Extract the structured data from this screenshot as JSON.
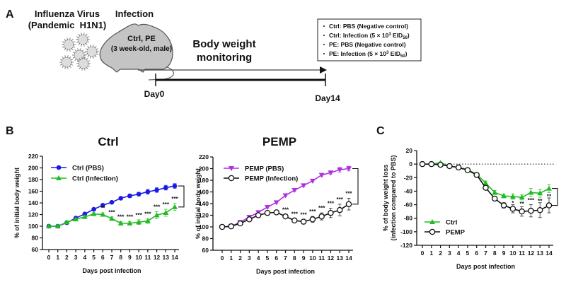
{
  "panel_a": {
    "label": "A",
    "virus_title_1": "Influenza Virus",
    "virus_title_2": "(Pandemic  H1N1)",
    "infection_label": "Infection",
    "mouse_line_1": "Ctrl, PE",
    "mouse_line_2": "(3 week-old, male)",
    "monitor_line_1": "Body weight",
    "monitor_line_2": "monitoring",
    "day_start": "Day0",
    "day_end": "Day14",
    "groups": [
      {
        "text": "Ctrl: PBS (Negative control)"
      },
      {
        "text": "Ctrl: Infection (5 × 10",
        "sup": "3",
        "mid": " EID",
        "sub": "50",
        "end": ")"
      },
      {
        "text": "PE: PBS (Negative control)"
      },
      {
        "text": "PE: Infection (5 × 10",
        "sup": "3",
        "mid": " EID",
        "sub": "50",
        "end": ")"
      }
    ]
  },
  "panel_b_label": "B",
  "panel_c_label": "C",
  "chart_data": [
    {
      "type": "line",
      "title": "Ctrl",
      "xlabel": "Days post infection",
      "ylabel": "% of initial body weight",
      "x": [
        0,
        1,
        2,
        3,
        4,
        5,
        6,
        7,
        8,
        9,
        10,
        11,
        12,
        13,
        14
      ],
      "ylim": [
        60,
        220
      ],
      "yticks": [
        60,
        80,
        100,
        120,
        140,
        160,
        180,
        200,
        220
      ],
      "legend": "top-left",
      "series": [
        {
          "name": "Ctrl (PBS)",
          "color": "#1a1ae6",
          "marker": "circle-filled",
          "values": [
            100,
            100,
            106,
            114,
            121,
            129,
            136,
            141,
            148,
            152,
            155,
            159,
            162,
            166,
            169
          ],
          "error": [
            1,
            1,
            2,
            2,
            2,
            2,
            2,
            2,
            2,
            3,
            3,
            4,
            4,
            4,
            4
          ]
        },
        {
          "name": "Ctrl (Infection)",
          "color": "#22bb22",
          "marker": "triangle-up",
          "values": [
            100,
            100,
            107,
            112,
            116,
            121,
            120,
            113,
            105,
            105,
            107,
            109,
            119,
            123,
            133
          ],
          "error": [
            1,
            1,
            2,
            2,
            2,
            2,
            3,
            3,
            3,
            3,
            4,
            4,
            6,
            6,
            6
          ]
        }
      ],
      "significance": [
        {
          "x": 6,
          "text": "**"
        },
        {
          "x": 7,
          "text": "***"
        },
        {
          "x": 8,
          "text": "***"
        },
        {
          "x": 9,
          "text": "***"
        },
        {
          "x": 10,
          "text": "***"
        },
        {
          "x": 11,
          "text": "***"
        },
        {
          "x": 12,
          "text": "***"
        },
        {
          "x": 13,
          "text": "***"
        },
        {
          "x": 14,
          "text": "***"
        }
      ],
      "bracket": [
        169,
        133
      ]
    },
    {
      "type": "line",
      "title": "PEMP",
      "xlabel": "Days post infection",
      "ylabel": "% of initial body weight",
      "x": [
        0,
        1,
        2,
        3,
        4,
        5,
        6,
        7,
        8,
        9,
        10,
        11,
        12,
        13,
        14
      ],
      "ylim": [
        60,
        220
      ],
      "yticks": [
        60,
        80,
        100,
        120,
        140,
        160,
        180,
        200,
        220
      ],
      "legend": "top-left",
      "series": [
        {
          "name": "PEMP (PBS)",
          "color": "#b030e0",
          "marker": "triangle-down",
          "values": [
            100,
            101,
            108,
            117,
            125,
            134,
            142,
            154,
            163,
            171,
            179,
            189,
            193,
            198,
            200
          ],
          "error": [
            1,
            1,
            2,
            2,
            2,
            2,
            2,
            2,
            2,
            2,
            2,
            2,
            3,
            4,
            4
          ]
        },
        {
          "name": "PEMP (Infection)",
          "color": "#111111",
          "marker": "circle-open",
          "values": [
            100,
            101,
            106,
            113,
            120,
            124,
            125,
            118,
            111,
            109,
            113,
            118,
            124,
            129,
            139
          ],
          "error": [
            1,
            1,
            2,
            2,
            2,
            2,
            2,
            3,
            3,
            4,
            5,
            6,
            8,
            10,
            10
          ]
        }
      ],
      "significance": [
        {
          "x": 7,
          "text": "***"
        },
        {
          "x": 8,
          "text": "***"
        },
        {
          "x": 9,
          "text": "***"
        },
        {
          "x": 10,
          "text": "***"
        },
        {
          "x": 11,
          "text": "***"
        },
        {
          "x": 12,
          "text": "***"
        },
        {
          "x": 13,
          "text": "***"
        },
        {
          "x": 14,
          "text": "***"
        }
      ],
      "bracket": [
        200,
        139
      ]
    },
    {
      "type": "line",
      "title": "",
      "xlabel": "Days post infection",
      "ylabel": "% of body weight loss",
      "ylabel2": "(infection compared to PBS)",
      "x": [
        0,
        1,
        2,
        3,
        4,
        5,
        6,
        7,
        8,
        9,
        10,
        11,
        12,
        13,
        14
      ],
      "ylim": [
        -120,
        20
      ],
      "yticks": [
        -120,
        -100,
        -80,
        -60,
        -40,
        -20,
        0,
        20
      ],
      "reference_line": 0,
      "legend": "bottom-left",
      "series": [
        {
          "name": "Ctrl",
          "color": "#22bb22",
          "marker": "triangle-up",
          "values": [
            0,
            0,
            2,
            -3,
            -5,
            -8,
            -15,
            -28,
            -42,
            -47,
            -48,
            -49,
            -42,
            -43,
            -36
          ],
          "error": [
            1,
            1,
            1,
            1,
            1,
            2,
            2,
            3,
            3,
            3,
            4,
            4,
            6,
            6,
            6
          ]
        },
        {
          "name": "PEMP",
          "color": "#111111",
          "marker": "circle-open",
          "values": [
            0,
            0,
            -1,
            -3,
            -5,
            -9,
            -16,
            -35,
            -51,
            -61,
            -66,
            -70,
            -69,
            -68,
            -61
          ],
          "error": [
            1,
            1,
            1,
            1,
            1,
            2,
            2,
            3,
            3,
            4,
            6,
            7,
            9,
            11,
            11
          ]
        }
      ],
      "significance": [
        {
          "x": 10,
          "text": "*"
        },
        {
          "x": 11,
          "text": "**"
        },
        {
          "x": 12,
          "text": "***"
        },
        {
          "x": 13,
          "text": "**"
        },
        {
          "x": 14,
          "text": "**"
        }
      ],
      "bracket": [
        -36,
        -61
      ]
    }
  ]
}
